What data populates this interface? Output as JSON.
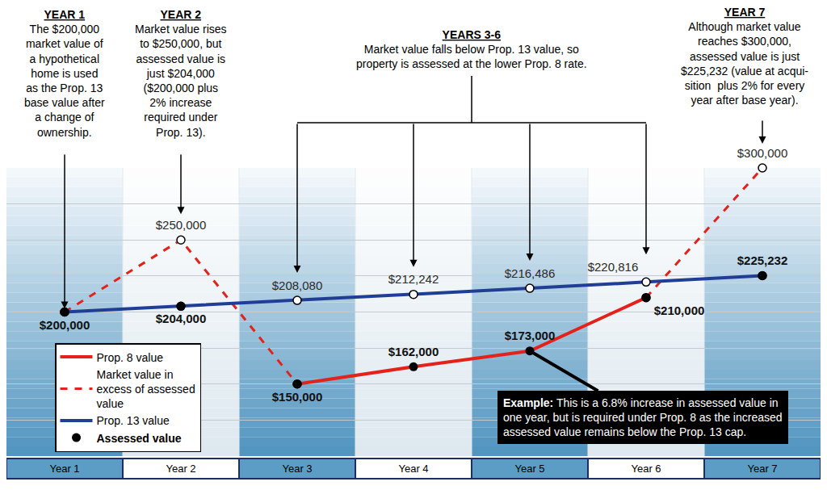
{
  "chart_data": {
    "type": "line",
    "categories": [
      "Year 1",
      "Year 2",
      "Year 3",
      "Year 4",
      "Year 5",
      "Year 6",
      "Year 7"
    ],
    "ylim": [
      100000,
      300000
    ],
    "yticks": [
      100000,
      125000,
      150000,
      175000,
      200000,
      225000,
      250000,
      275000,
      300000
    ],
    "grid": true,
    "tick_labels": "x",
    "legend": "lower left",
    "data_labels": true,
    "series": [
      {
        "name": "Prop. 8 value",
        "color": "#e3231b",
        "line_style": "solid",
        "values": [
          null,
          null,
          150000,
          162000,
          173000,
          210000,
          null
        ]
      },
      {
        "name": "Market value in excess of assessed value",
        "color": "#e3231b",
        "line_style": "dashed",
        "marker": "circle-open",
        "values": [
          200000,
          250000,
          150000,
          null,
          null,
          210000,
          300000
        ],
        "value_labels": [
          null,
          "$250,000",
          null,
          null,
          null,
          null,
          "$300,000"
        ]
      },
      {
        "name": "Prop. 13 value",
        "color": "#213e96",
        "line_style": "solid",
        "marker": "circle-open",
        "values": [
          200000,
          204000,
          208080,
          212242,
          216486,
          220816,
          225232
        ],
        "value_labels": [
          null,
          null,
          "$208,080",
          "$212,242",
          "$216,486",
          "$220,816",
          null
        ]
      },
      {
        "name": "Assessed value",
        "type": "scatter",
        "color": "#000000",
        "marker": "circle",
        "values": [
          200000,
          204000,
          150000,
          162000,
          173000,
          210000,
          225232
        ],
        "value_labels": [
          "$200,000",
          "$204,000",
          "$150,000",
          "$162,000",
          "$173,000",
          "$210,000",
          "$225,232"
        ]
      }
    ],
    "annotations": [
      {
        "heading": "YEAR 1",
        "lines": [
          "The $200,000",
          "market value of",
          "a hypothetical",
          "home is used",
          "as the Prop. 13",
          "base value after",
          "a change of",
          "ownership."
        ]
      },
      {
        "heading": "YEAR 2",
        "lines": [
          "Market value rises",
          "to $250,000, but",
          "assessed value is",
          "just $204,000",
          "($200,000 plus",
          "2% increase",
          "required under",
          "Prop. 13)."
        ]
      },
      {
        "heading": "YEARS 3-6",
        "lines": [
          "Market value falls below Prop. 13 value, so",
          "property is assessed at the lower Prop. 8 rate."
        ]
      },
      {
        "heading": "YEAR 7",
        "lines": [
          "Although market value",
          "reaches $300,000,",
          "assessed value is just",
          "$225,232 (value at acqui-",
          "sition  plus 2% for every",
          "year after base year)."
        ]
      },
      {
        "heading": "Example:",
        "lines": [
          "This is a 6.8% increase in assessed value in",
          "one year, but is required under Prop. 8 as the increased",
          "assessed value remains below the Prop. 13 cap."
        ]
      }
    ]
  }
}
